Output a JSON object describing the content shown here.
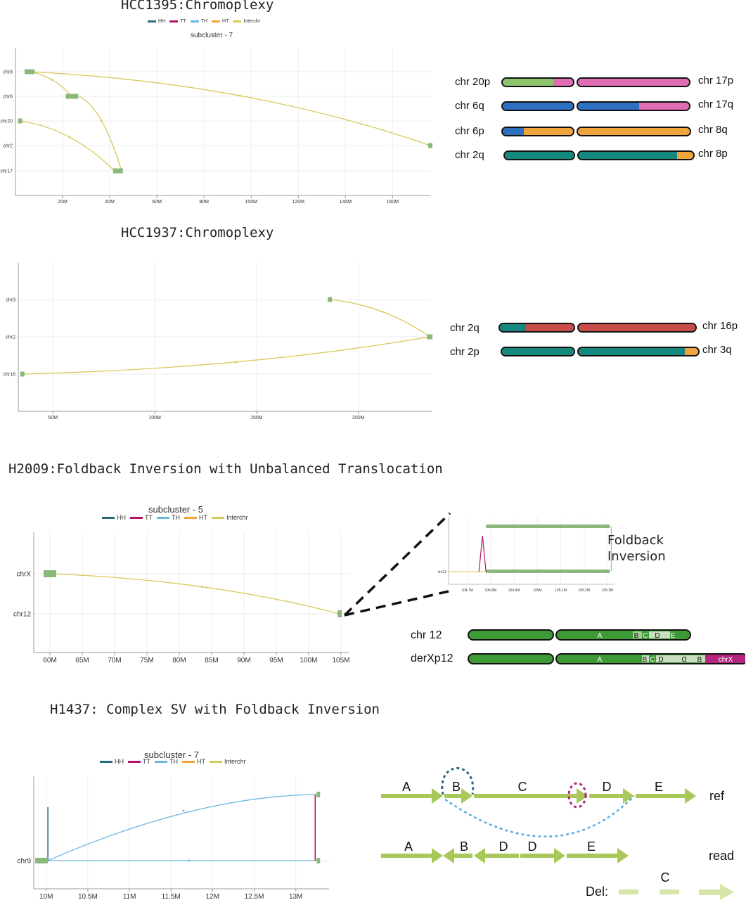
{
  "colors": {
    "HH": "#2a6a7e",
    "TT": "#b3136b",
    "TH": "#6db8e0",
    "HT": "#f2a33a",
    "Interchr": "#d8c95a",
    "node": "#8ab87a",
    "arrow": "#a8c85a",
    "green_chr": "#3e9a36",
    "pink": "#e06db5",
    "lightgreen": "#8fc46e",
    "blue": "#2e6fc0",
    "orange": "#f0a53c",
    "teal": "#15897d",
    "red": "#c84d4a",
    "magenta": "#b3247e"
  },
  "legend": [
    "HH",
    "TT",
    "TH",
    "HT",
    "Interchr"
  ],
  "hcc1395": {
    "title": "HCC1395:Chromoplexy",
    "subtitle": "subcluster - 7",
    "chart_data": {
      "type": "diagram",
      "y_categories": [
        "chr8",
        "chr6",
        "chr20",
        "chr2",
        "chr17"
      ],
      "x_ticks": [
        "20M",
        "40M",
        "60M",
        "80M",
        "100M",
        "120M",
        "140M",
        "160M"
      ],
      "x_tick_values": [
        20,
        40,
        60,
        80,
        100,
        120,
        140,
        160
      ],
      "xlim": [
        0,
        176
      ],
      "links": [
        {
          "from": [
            "chr8",
            6
          ],
          "to": [
            "chr2",
            176
          ],
          "type": "Interchr"
        },
        {
          "from": [
            "chr8",
            6
          ],
          "to": [
            "chr6",
            24
          ],
          "type": "Interchr"
        },
        {
          "from": [
            "chr6",
            27
          ],
          "to": [
            "chr17",
            45
          ],
          "type": "Interchr"
        },
        {
          "from": [
            "chr20",
            2
          ],
          "to": [
            "chr17",
            42
          ],
          "type": "Interchr"
        }
      ]
    },
    "karyotypes": [
      {
        "left": "chr 20p",
        "right": "chr 17p",
        "p": [
          [
            "lightgreen",
            0.72
          ],
          [
            "pink",
            0.28
          ]
        ],
        "q": [
          [
            "pink",
            1.0
          ]
        ]
      },
      {
        "left": "chr 6q",
        "right": "chr 17q",
        "p": [
          [
            "blue",
            1.0
          ]
        ],
        "q": [
          [
            "blue",
            0.55
          ],
          [
            "pink",
            0.45
          ]
        ]
      },
      {
        "left": "chr 6p",
        "right": "chr 8q",
        "p": [
          [
            "blue",
            0.3
          ],
          [
            "orange",
            0.7
          ]
        ],
        "q": [
          [
            "orange",
            1.0
          ]
        ]
      },
      {
        "left": "chr 2q",
        "right": "chr 8p",
        "p": [
          [
            "teal",
            1.0
          ]
        ],
        "q": [
          [
            "teal",
            0.86
          ],
          [
            "orange",
            0.14
          ]
        ]
      }
    ]
  },
  "hcc1937": {
    "title": "HCC1937:Chromoplexy",
    "chart_data": {
      "type": "diagram",
      "y_categories": [
        "chr3",
        "chr2",
        "chr16"
      ],
      "x_ticks": [
        "50M",
        "100M",
        "150M",
        "200M"
      ],
      "x_tick_values": [
        50,
        100,
        150,
        200
      ],
      "xlim": [
        33,
        236
      ],
      "links": [
        {
          "from": [
            "chr3",
            186
          ],
          "to": [
            "chr2",
            235
          ],
          "type": "Interchr"
        },
        {
          "from": [
            "chr16",
            35
          ],
          "to": [
            "chr2",
            235
          ],
          "type": "Interchr"
        }
      ]
    },
    "karyotypes": [
      {
        "left": "chr 2q",
        "right": "chr 16p",
        "p": [
          [
            "teal",
            0.35
          ],
          [
            "red",
            0.65
          ]
        ],
        "q": [
          [
            "red",
            1.0
          ]
        ]
      },
      {
        "left": "chr 2p",
        "right": "chr 3q",
        "p": [
          [
            "teal",
            1.0
          ]
        ],
        "q": [
          [
            "teal",
            0.89
          ],
          [
            "orange",
            0.11
          ]
        ]
      }
    ]
  },
  "h2009": {
    "title": "H2009:Foldback Inversion with Unbalanced Translocation",
    "subtitle": "subcluster - 5",
    "chart_data": {
      "type": "diagram",
      "y_categories": [
        "chrX",
        "chr12"
      ],
      "x_ticks": [
        "60M",
        "65M",
        "70M",
        "75M",
        "80M",
        "85M",
        "90M",
        "95M",
        "100M",
        "105M"
      ],
      "x_tick_values": [
        60,
        65,
        70,
        75,
        80,
        85,
        90,
        95,
        100,
        105
      ],
      "xlim": [
        57.5,
        106.2
      ],
      "links": [
        {
          "from": [
            "chrX",
            60
          ],
          "to": [
            "chr12",
            104.8
          ],
          "type": "Interchr"
        }
      ]
    },
    "inset": {
      "y_label": "chr12",
      "x_ticks": [
        "104.7M",
        "104.8M",
        "104.9M",
        "105M",
        "105.1M",
        "105.2M",
        "105.3M"
      ],
      "x_tick_values": [
        104.7,
        104.8,
        104.9,
        105.0,
        105.1,
        105.2,
        105.3
      ]
    },
    "foldback_label": "Foldback\nInversion",
    "chr12_label": "chr 12",
    "derx_label": "derXp12",
    "chr12_letters": [
      "A",
      "B",
      "C",
      "D",
      "E"
    ],
    "derx_letters": [
      "A",
      "B",
      "C",
      "D",
      "D",
      "B",
      "chrX"
    ]
  },
  "h1437": {
    "title": "H1437: Complex SV with Foldback Inversion",
    "subtitle": "subcluster - 7",
    "chart_data": {
      "type": "diagram",
      "y_categories": [
        "chr9"
      ],
      "x_ticks": [
        "10M",
        "10.5M",
        "11M",
        "11.5M",
        "12M",
        "12.5M",
        "13M"
      ],
      "x_tick_values": [
        10,
        10.5,
        11,
        11.5,
        12,
        12.5,
        13
      ],
      "xlim": [
        9.85,
        13.4
      ],
      "links": [
        {
          "from": [
            "chr9",
            10.02
          ],
          "to": [
            "chr9",
            13.25
          ],
          "type": "TH"
        },
        {
          "from": [
            "chr9",
            10.02
          ],
          "to": [
            "chr9",
            10.02
          ],
          "type": "HH"
        },
        {
          "from": [
            "chr9",
            13.25
          ],
          "to": [
            "chr9",
            13.25
          ],
          "type": "TT"
        }
      ]
    },
    "ref_letters": [
      "A",
      "B",
      "C",
      "D",
      "E"
    ],
    "read_letters": [
      "A",
      "B",
      "D",
      "D",
      "E"
    ],
    "ref_label": "ref",
    "read_label": "read",
    "del_label": "Del:",
    "del_letter": "C"
  }
}
